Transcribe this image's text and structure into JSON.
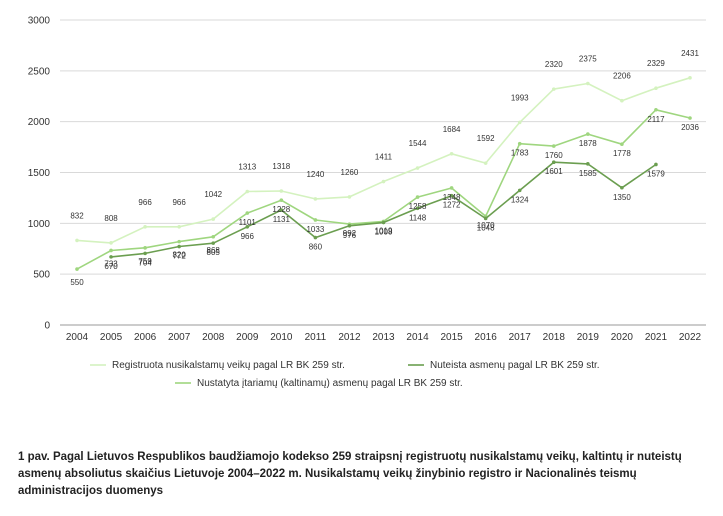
{
  "chart_data": {
    "type": "line",
    "title": "",
    "xlabel": "",
    "ylabel": "",
    "ylim": [
      0,
      3000
    ],
    "yticks": [
      0,
      500,
      1000,
      1500,
      2000,
      2500,
      3000
    ],
    "categories": [
      "2004",
      "2005",
      "2006",
      "2007",
      "2008",
      "2009",
      "2010",
      "2011",
      "2012",
      "2013",
      "2014",
      "2015",
      "2016",
      "2017",
      "2018",
      "2019",
      "2020",
      "2021",
      "2022"
    ],
    "series": [
      {
        "name": "Registruota nusikalstamų veikų pagal LR BK 259 str.",
        "color": "#d4f2bf",
        "values": [
          832,
          808,
          966,
          966,
          1042,
          1313,
          1318,
          1240,
          1260,
          1411,
          1544,
          1684,
          1592,
          1993,
          2320,
          2375,
          2206,
          2329,
          2431
        ]
      },
      {
        "name": "Nustatyta įtariamų (kaltinamų) asmenų pagal LR BK 259 str.",
        "color": "#9fd67f",
        "values": [
          550,
          733,
          759,
          820,
          868,
          1101,
          1228,
          1033,
          992,
          1019,
          1258,
          1348,
          1070,
          1783,
          1760,
          1878,
          1778,
          2117,
          2036
        ]
      },
      {
        "name": "Nuteista asmenų pagal LR BK 259 str.",
        "color": "#6b9e50",
        "values": [
          null,
          670,
          704,
          772,
          805,
          966,
          1131,
          860,
          976,
          1008,
          1148,
          1272,
          1048,
          1324,
          1601,
          1585,
          1350,
          1579,
          null
        ]
      }
    ]
  },
  "caption": "1 pav. Pagal Lietuvos Respublikos baudžiamojo kodekso 259 straipsnį registruotų nusikalstamų veikų, kaltintų ir nuteistų asmenų absoliutus skaičius Lietuvoje 2004–2022 m. Nusikalstamų veikų žinybinio registro ir Nacionalinės teismų administracijos duomenys"
}
